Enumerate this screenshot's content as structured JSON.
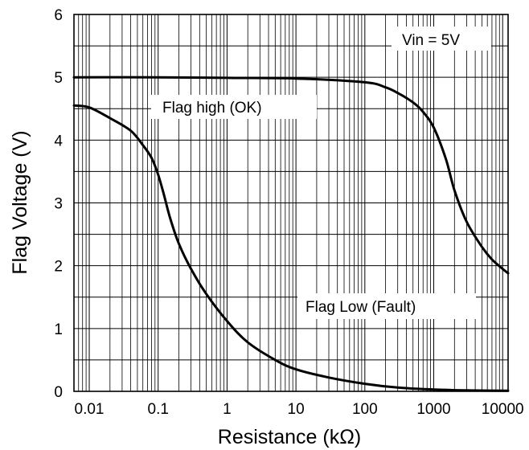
{
  "chart_data": {
    "type": "line",
    "title": "",
    "xlabel": "Resistance (kΩ)",
    "ylabel": "Flag Voltage (V)",
    "x_scale": "log",
    "xlim": [
      0.006,
      12000
    ],
    "ylim": [
      0,
      6
    ],
    "grid": true,
    "x_tick_labels": [
      "0.01",
      "0.1",
      "1",
      "10",
      "100",
      "1000",
      "10000"
    ],
    "x_tick_values": [
      0.01,
      0.1,
      1,
      10,
      100,
      1000,
      10000
    ],
    "y_tick_labels": [
      "0",
      "1",
      "2",
      "3",
      "4",
      "5",
      "6"
    ],
    "y_tick_values": [
      0,
      1,
      2,
      3,
      4,
      5,
      6
    ],
    "annotations": [
      {
        "text": "Vin = 5V"
      },
      {
        "text": "Flag high (OK)"
      },
      {
        "text": "Flag Low (Fault)"
      }
    ],
    "series": [
      {
        "id": "flag-high",
        "x": [
          0.006,
          0.1,
          1,
          10,
          100,
          200,
          300,
          500,
          700,
          1000,
          1500,
          2000,
          3000,
          5000,
          7000,
          10000,
          12000
        ],
        "y": [
          5.0,
          5.0,
          4.99,
          4.98,
          4.92,
          4.84,
          4.75,
          4.6,
          4.45,
          4.2,
          3.7,
          3.2,
          2.7,
          2.3,
          2.1,
          1.95,
          1.88
        ]
      },
      {
        "id": "flag-low",
        "x": [
          0.006,
          0.01,
          0.02,
          0.04,
          0.06,
          0.08,
          0.1,
          0.12,
          0.15,
          0.2,
          0.3,
          0.5,
          1,
          2,
          5,
          10,
          30,
          100,
          300,
          1000,
          3000,
          12000
        ],
        "y": [
          4.55,
          4.52,
          4.35,
          4.15,
          3.92,
          3.72,
          3.45,
          3.15,
          2.75,
          2.35,
          1.95,
          1.55,
          1.12,
          0.78,
          0.5,
          0.35,
          0.22,
          0.12,
          0.06,
          0.03,
          0.015,
          0.01
        ]
      }
    ]
  }
}
